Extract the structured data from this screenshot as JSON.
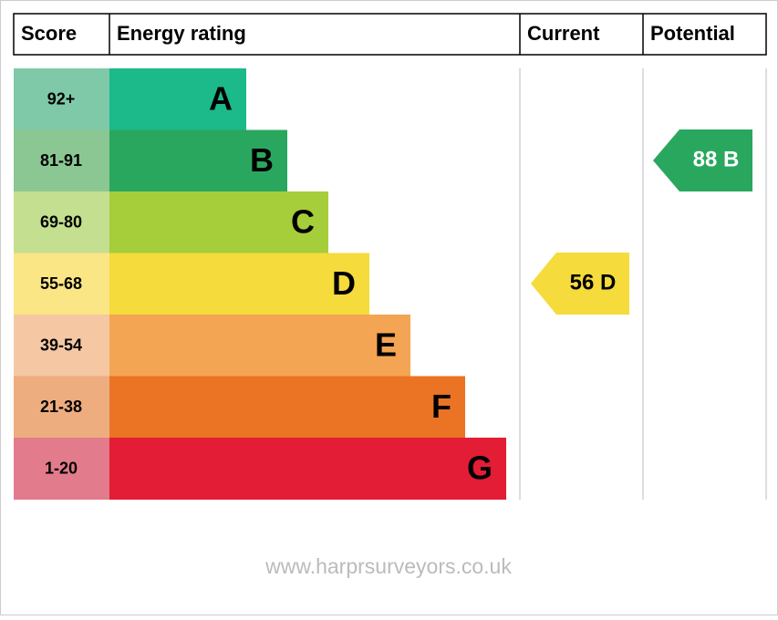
{
  "header": [
    "Score",
    "Energy rating",
    "Current",
    "Potential"
  ],
  "bands": [
    {
      "score": "92+",
      "letter": "A",
      "color": "#1cb98a",
      "score_color": "#7fc9a9"
    },
    {
      "score": "81-91",
      "letter": "B",
      "color": "#2aa75e",
      "score_color": "#8bc793"
    },
    {
      "score": "69-80",
      "letter": "C",
      "color": "#a6cd3a",
      "score_color": "#c4df8f"
    },
    {
      "score": "55-68",
      "letter": "D",
      "color": "#f5db3b",
      "score_color": "#fae685"
    },
    {
      "score": "39-54",
      "letter": "E",
      "color": "#f4a553",
      "score_color": "#f5c8a3"
    },
    {
      "score": "21-38",
      "letter": "F",
      "color": "#eb7324",
      "score_color": "#eead7f"
    },
    {
      "score": "1-20",
      "letter": "G",
      "color": "#e31d36",
      "score_color": "#e27b8b"
    }
  ],
  "current": {
    "label": "56 D",
    "color": "#f5db3b"
  },
  "potential": {
    "label": "88 B",
    "color": "#2aa75e"
  },
  "footer": "www.harprsurveyors.co.uk"
}
